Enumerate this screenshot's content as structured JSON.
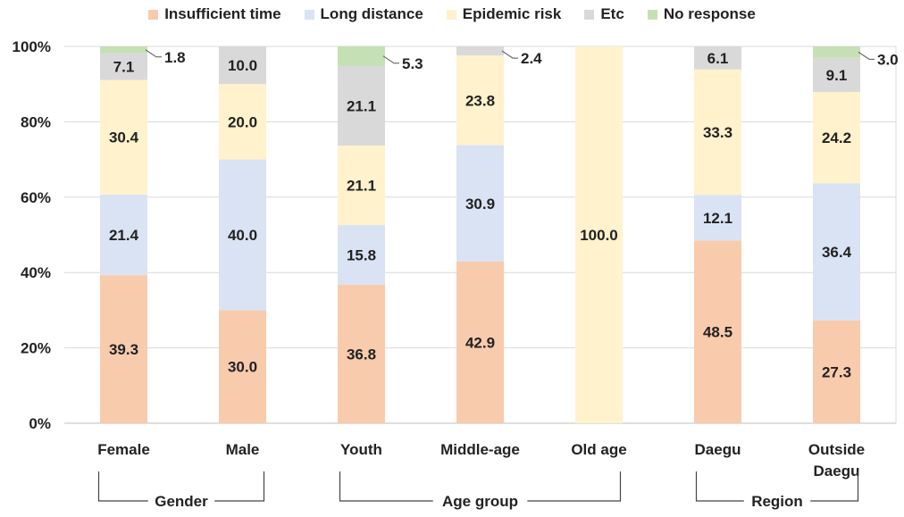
{
  "chart_data": {
    "type": "bar",
    "stacked": true,
    "percent": true,
    "categories": [
      "Female",
      "Male",
      "Youth",
      "Middle-age",
      "Old age",
      "Daegu",
      "Outside Daegu"
    ],
    "category_lines": [
      [
        "Female"
      ],
      [
        "Male"
      ],
      [
        "Youth"
      ],
      [
        "Middle-age"
      ],
      [
        "Old age"
      ],
      [
        "Daegu"
      ],
      [
        "Outside",
        "Daegu"
      ]
    ],
    "series": [
      {
        "name": "Insufficient time",
        "color": "#f8cbad",
        "values": [
          39.3,
          30.0,
          36.8,
          42.9,
          0,
          48.5,
          27.3
        ]
      },
      {
        "name": "Long distance",
        "color": "#dae3f3",
        "values": [
          21.4,
          40.0,
          15.8,
          30.9,
          0,
          12.1,
          36.4
        ]
      },
      {
        "name": "Epidemic risk",
        "color": "#fff2cc",
        "values": [
          30.4,
          20.0,
          21.1,
          23.8,
          100.0,
          33.3,
          24.2
        ]
      },
      {
        "name": "Etc",
        "color": "#d9d9d9",
        "values": [
          7.1,
          10.0,
          21.1,
          2.4,
          0,
          6.1,
          9.1
        ]
      },
      {
        "name": "No response",
        "color": "#c5e0b4",
        "values": [
          1.8,
          0,
          5.3,
          0,
          0,
          0,
          3.0
        ]
      }
    ],
    "data_labels": [
      [
        "39.3",
        "30.0",
        "36.8",
        "42.9",
        "",
        "48.5",
        "27.3"
      ],
      [
        "21.4",
        "40.0",
        "15.8",
        "30.9",
        "",
        "12.1",
        "36.4"
      ],
      [
        "30.4",
        "20.0",
        "21.1",
        "23.8",
        "100.0",
        "33.3",
        "24.2"
      ],
      [
        "7.1",
        "10.0",
        "21.1",
        "",
        "",
        "6.1",
        "9.1"
      ],
      [
        "",
        "",
        "",
        "",
        "",
        "",
        ""
      ]
    ],
    "outside_labels": [
      {
        "category": 0,
        "series": 4,
        "text": "1.8"
      },
      {
        "category": 2,
        "series": 4,
        "text": "5.3"
      },
      {
        "category": 3,
        "series": 3,
        "text": "2.4"
      },
      {
        "category": 6,
        "series": 4,
        "text": "3.0"
      }
    ],
    "y_ticks": [
      "0%",
      "20%",
      "40%",
      "60%",
      "80%",
      "100%"
    ],
    "ylim": [
      0,
      100
    ],
    "groups": [
      {
        "label": "Gender",
        "from": 0,
        "to": 1
      },
      {
        "label": "Age group",
        "from": 2,
        "to": 4
      },
      {
        "label": "Region",
        "from": 5,
        "to": 6
      }
    ],
    "legend_position": "top"
  }
}
